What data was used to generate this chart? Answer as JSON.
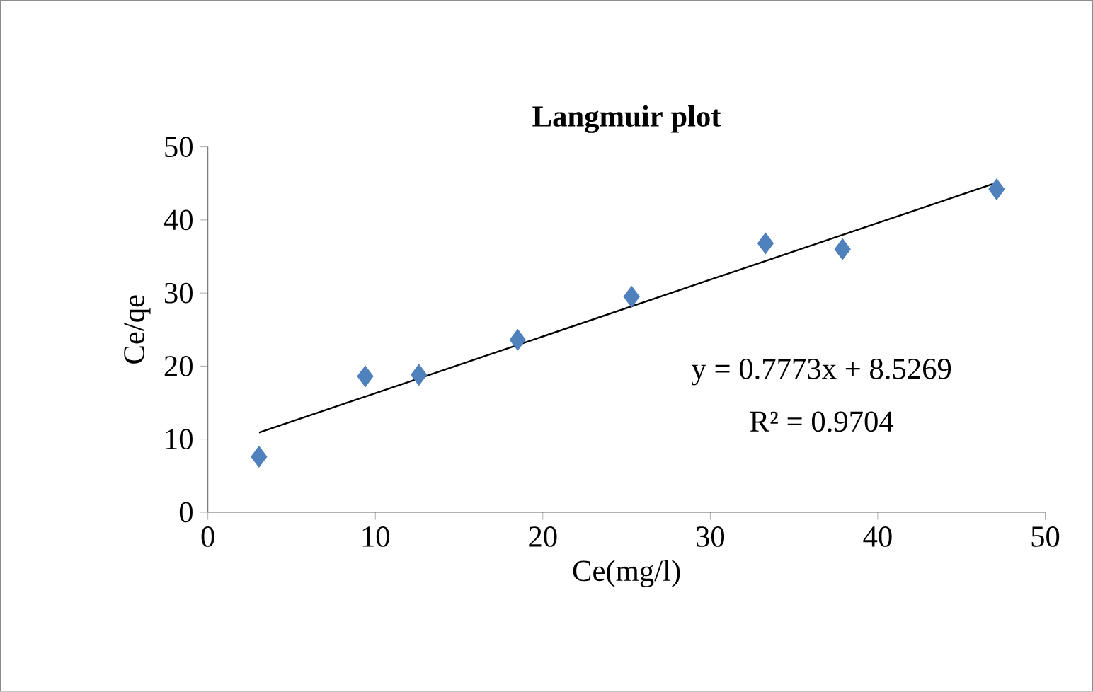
{
  "chart_data": {
    "type": "scatter",
    "title": "Langmuir plot",
    "xlabel": "Ce(mg/l)",
    "ylabel": "Ce/qe",
    "xlim": [
      0,
      50
    ],
    "ylim": [
      0,
      50
    ],
    "xticks": [
      0,
      10,
      20,
      30,
      40,
      50
    ],
    "yticks": [
      0,
      10,
      20,
      30,
      40,
      50
    ],
    "series": [
      {
        "color": "#4f81bd",
        "marker": "diamond",
        "x": [
          3.05,
          9.4,
          12.6,
          18.5,
          25.3,
          33.3,
          37.9,
          47.1
        ],
        "values": [
          7.6,
          18.6,
          18.8,
          23.6,
          29.5,
          36.8,
          36.0,
          44.2
        ]
      },
      {
        "type": "line",
        "color": "#000000",
        "marker": "none",
        "x": [
          3.05,
          47.1
        ],
        "values": [
          10.9,
          45.1
        ]
      }
    ],
    "annotations": [
      "y = 0.7773x + 8.5269",
      "R² = 0.9704"
    ]
  }
}
